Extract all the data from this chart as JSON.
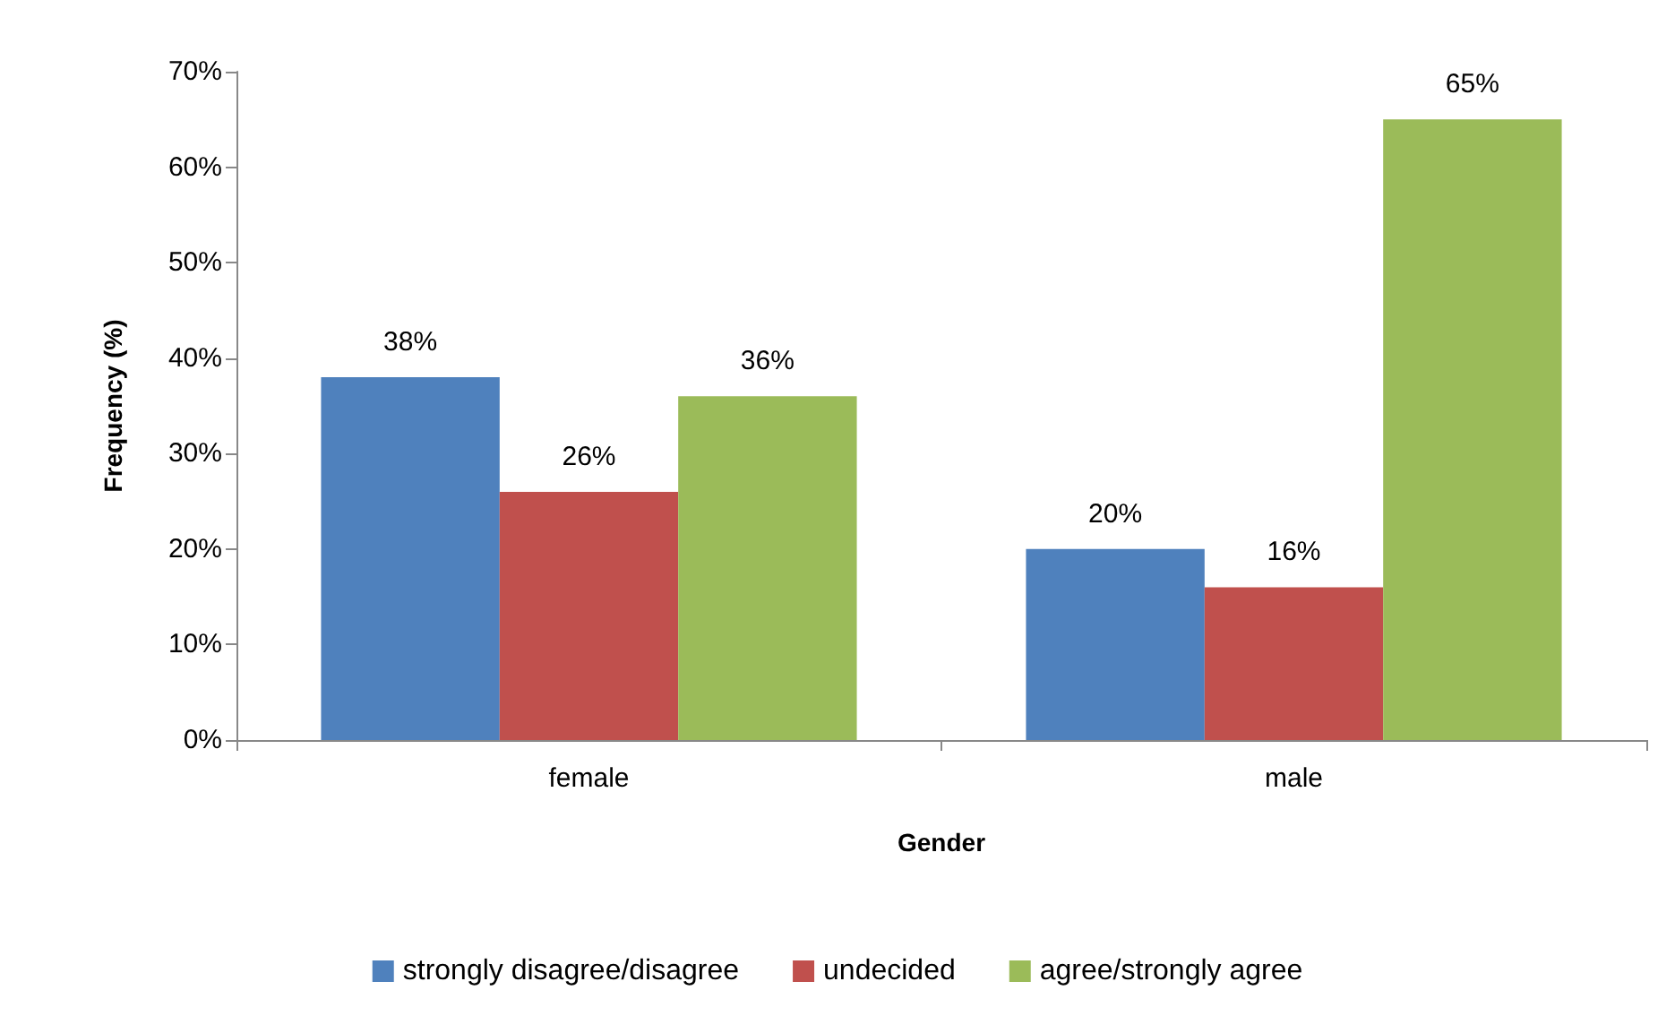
{
  "chart_data": {
    "type": "bar",
    "xlabel": "Gender",
    "ylabel": "Frequency (%)",
    "categories": [
      "female",
      "male"
    ],
    "series": [
      {
        "name": "strongly disagree/disagree",
        "color": "#4f81bd",
        "values": [
          38,
          20
        ],
        "value_labels": [
          "38%",
          "20%"
        ]
      },
      {
        "name": "undecided",
        "color": "#c0504d",
        "values": [
          26,
          16
        ],
        "value_labels": [
          "26%",
          "16%"
        ]
      },
      {
        "name": "agree/strongly agree",
        "color": "#9bbb59",
        "values": [
          36,
          65
        ],
        "value_labels": [
          "36%",
          "65%"
        ]
      }
    ],
    "ylim": [
      0,
      70
    ],
    "yticks": [
      {
        "value": 0,
        "label": "0%"
      },
      {
        "value": 10,
        "label": "10%"
      },
      {
        "value": 20,
        "label": "20%"
      },
      {
        "value": 30,
        "label": "30%"
      },
      {
        "value": 40,
        "label": "40%"
      },
      {
        "value": 50,
        "label": "50%"
      },
      {
        "value": 60,
        "label": "60%"
      },
      {
        "value": 70,
        "label": "70%"
      }
    ],
    "grid": false,
    "legend": "bottom"
  }
}
